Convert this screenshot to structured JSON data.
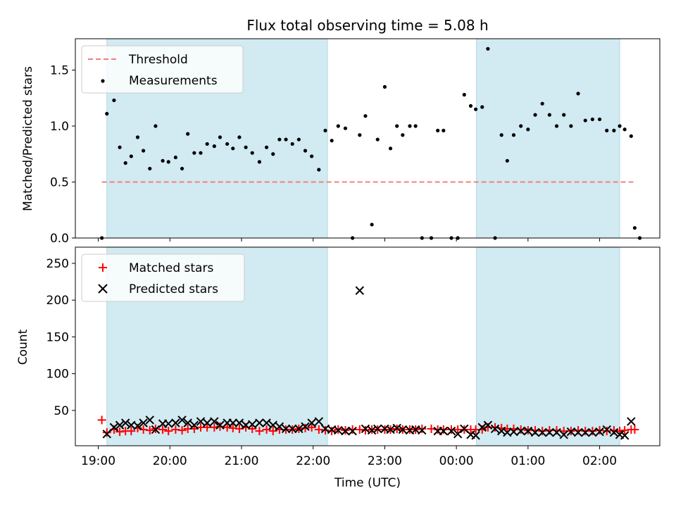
{
  "title": "Flux total observing time = 5.08 h",
  "colors": {
    "threshold": "#f08080",
    "shade": "#add8e6",
    "matched": "#ff0000",
    "predicted": "#000000",
    "measurement": "#000000"
  },
  "chart_data": [
    {
      "type": "scatter",
      "ylabel": "Matched/Predicted stars",
      "ylim": [
        0,
        1.78
      ],
      "yticks": [
        0.0,
        0.5,
        1.0,
        1.5
      ],
      "ytick_labels": [
        "0.0",
        "0.5",
        "1.0",
        "1.5"
      ],
      "xlim": [
        18.68,
        26.84
      ],
      "shaded_intervals": [
        [
          19.12,
          22.2
        ],
        [
          24.28,
          26.28
        ]
      ],
      "legend": {
        "placement": "top-left",
        "entries": [
          "Threshold",
          "Measurements"
        ]
      },
      "threshold": {
        "name": "Threshold",
        "value": 0.5,
        "x": [
          19.05,
          26.47
        ]
      },
      "series": [
        {
          "name": "Measurements",
          "x": [
            19.05,
            19.12,
            19.22,
            19.3,
            19.38,
            19.46,
            19.55,
            19.63,
            19.72,
            19.8,
            19.9,
            19.98,
            20.08,
            20.17,
            20.25,
            20.34,
            20.43,
            20.52,
            20.62,
            20.7,
            20.8,
            20.88,
            20.97,
            21.06,
            21.15,
            21.25,
            21.35,
            21.44,
            21.53,
            21.62,
            21.71,
            21.8,
            21.89,
            21.98,
            22.08,
            22.17,
            22.26,
            22.35,
            22.45,
            22.55,
            22.65,
            22.73,
            22.82,
            22.9,
            23.0,
            23.08,
            23.17,
            23.25,
            23.35,
            23.43,
            23.52,
            23.65,
            23.74,
            23.82,
            23.93,
            24.02,
            24.11,
            24.2,
            24.27,
            24.36,
            24.44,
            24.54,
            24.63,
            24.71,
            24.8,
            24.9,
            25.0,
            25.1,
            25.2,
            25.3,
            25.4,
            25.5,
            25.6,
            25.7,
            25.8,
            25.9,
            26.0,
            26.1,
            26.2,
            26.28,
            26.35,
            26.44
          ],
          "y": [
            0.0,
            1.11,
            1.23,
            0.81,
            0.67,
            0.73,
            0.9,
            0.78,
            0.62,
            1.0,
            0.69,
            0.68,
            0.72,
            0.62,
            0.93,
            0.76,
            0.76,
            0.84,
            0.82,
            0.9,
            0.84,
            0.8,
            0.9,
            0.81,
            0.76,
            0.68,
            0.81,
            0.75,
            0.88,
            0.88,
            0.84,
            0.88,
            0.78,
            0.73,
            0.61,
            0.96,
            0.87,
            1.0,
            0.98,
            0.0,
            0.92,
            1.09,
            0.12,
            0.88,
            1.35,
            0.8,
            1.0,
            0.92,
            1.0,
            1.0,
            0.0,
            0.0,
            0.96,
            0.96,
            0.0,
            0.0,
            1.28,
            1.18,
            1.15,
            1.17,
            1.69,
            0.0,
            0.92,
            0.69,
            0.92,
            1.0,
            0.97,
            1.1,
            1.2,
            1.1,
            1.0,
            1.1,
            1.0,
            1.29,
            1.05,
            1.06,
            1.06,
            0.96,
            0.96,
            1.0,
            0.97,
            0.91
          ],
          "x_extra": [
            26.49,
            26.56
          ],
          "y_extra": [
            0.09,
            0.0
          ]
        }
      ]
    },
    {
      "type": "scatter",
      "xlabel": "Time (UTC)",
      "ylabel": "Count",
      "ylim": [
        2,
        272
      ],
      "yticks": [
        50,
        100,
        150,
        200,
        250
      ],
      "ytick_labels": [
        "50",
        "100",
        "150",
        "200",
        "250"
      ],
      "xlim": [
        18.68,
        26.84
      ],
      "xticks": [
        19,
        20,
        21,
        22,
        23,
        24,
        25,
        26
      ],
      "xtick_labels": [
        "19:00",
        "20:00",
        "21:00",
        "22:00",
        "23:00",
        "00:00",
        "01:00",
        "02:00"
      ],
      "shaded_intervals": [
        [
          19.12,
          22.2
        ],
        [
          24.28,
          26.28
        ]
      ],
      "legend": {
        "placement": "top-left",
        "entries": [
          "Matched stars",
          "Predicted stars"
        ]
      },
      "series": [
        {
          "name": "Matched stars",
          "marker": "+",
          "x": [
            19.05,
            19.12,
            19.22,
            19.3,
            19.38,
            19.46,
            19.55,
            19.63,
            19.72,
            19.8,
            19.9,
            19.98,
            20.08,
            20.17,
            20.25,
            20.34,
            20.43,
            20.52,
            20.62,
            20.7,
            20.8,
            20.88,
            20.97,
            21.06,
            21.15,
            21.25,
            21.35,
            21.44,
            21.53,
            21.62,
            21.71,
            21.8,
            21.89,
            21.98,
            22.08,
            22.17,
            22.26,
            22.35,
            22.45,
            22.55,
            22.65,
            22.73,
            22.82,
            22.9,
            23.0,
            23.08,
            23.17,
            23.25,
            23.35,
            23.43,
            23.52,
            23.65,
            23.74,
            23.82,
            23.93,
            24.02,
            24.11,
            24.2,
            24.27,
            24.36,
            24.44,
            24.54,
            24.63,
            24.71,
            24.8,
            24.9,
            25.0,
            25.1,
            25.2,
            25.3,
            25.4,
            25.5,
            25.6,
            25.7,
            25.8,
            25.9,
            26.0,
            26.1,
            26.2,
            26.28,
            26.35,
            26.44,
            26.49
          ],
          "y": [
            37,
            20,
            24,
            21,
            22,
            22,
            26,
            24,
            23,
            25,
            24,
            22,
            24,
            23,
            25,
            25,
            27,
            27,
            27,
            28,
            27,
            26,
            25,
            27,
            25,
            22,
            24,
            22,
            24,
            24,
            24,
            25,
            26,
            27,
            24,
            23,
            22,
            24,
            23,
            24,
            24,
            23,
            24,
            24,
            24,
            24,
            25,
            24,
            24,
            24,
            25,
            25,
            24,
            24,
            24,
            24,
            24,
            24,
            24,
            24,
            27,
            27,
            26,
            25,
            25,
            24,
            23,
            23,
            22,
            23,
            23,
            22,
            22,
            23,
            22,
            22,
            23,
            22,
            23,
            22,
            23,
            24,
            24
          ]
        },
        {
          "name": "Predicted stars",
          "marker": "x",
          "x": [
            19.12,
            19.22,
            19.3,
            19.38,
            19.46,
            19.55,
            19.63,
            19.72,
            19.8,
            19.9,
            19.98,
            20.08,
            20.17,
            20.25,
            20.34,
            20.43,
            20.52,
            20.62,
            20.7,
            20.8,
            20.88,
            20.97,
            21.06,
            21.15,
            21.25,
            21.35,
            21.44,
            21.53,
            21.62,
            21.71,
            21.8,
            21.89,
            21.98,
            22.08,
            22.17,
            22.26,
            22.35,
            22.45,
            22.55,
            22.65,
            22.73,
            22.82,
            22.9,
            23.0,
            23.08,
            23.17,
            23.25,
            23.35,
            23.43,
            23.52,
            23.74,
            23.82,
            23.93,
            24.02,
            24.11,
            24.2,
            24.27,
            24.36,
            24.44,
            24.54,
            24.63,
            24.71,
            24.8,
            24.9,
            25.0,
            25.1,
            25.2,
            25.3,
            25.4,
            25.5,
            25.6,
            25.7,
            25.8,
            25.9,
            26.0,
            26.1,
            26.2,
            26.28,
            26.35,
            26.44
          ],
          "y": [
            18,
            27,
            30,
            33,
            30,
            29,
            33,
            37,
            24,
            32,
            32,
            33,
            37,
            33,
            30,
            35,
            33,
            35,
            30,
            33,
            33,
            33,
            30,
            31,
            33,
            33,
            30,
            28,
            25,
            25,
            25,
            28,
            33,
            35,
            25,
            24,
            23,
            22,
            22,
            213,
            25,
            23,
            25,
            25,
            24,
            26,
            24,
            23,
            24,
            23,
            22,
            22,
            22,
            18,
            25,
            17,
            16,
            27,
            30,
            25,
            22,
            20,
            21,
            22,
            22,
            20,
            20,
            20,
            20,
            17,
            21,
            20,
            20,
            20,
            21,
            24,
            20,
            17,
            16,
            35
          ]
        }
      ]
    }
  ]
}
